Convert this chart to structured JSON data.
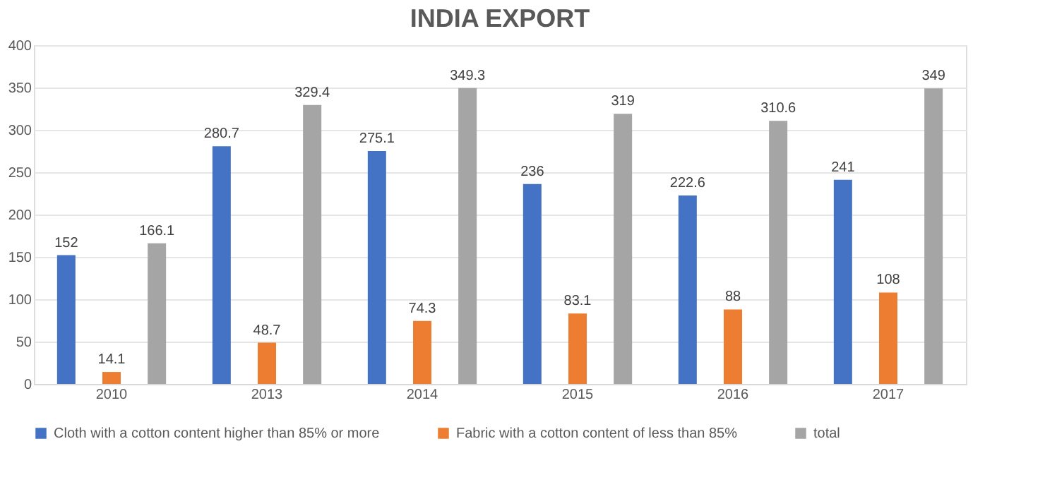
{
  "chart_data": {
    "type": "bar",
    "title": "INDIA EXPORT",
    "categories": [
      "2010",
      "2013",
      "2014",
      "2015",
      "2016",
      "2017"
    ],
    "series": [
      {
        "name": "Cloth with a cotton content higher than 85% or more",
        "color": "#4472c4",
        "values": [
          152,
          280.7,
          275.1,
          236,
          222.6,
          241
        ]
      },
      {
        "name": "Fabric with a cotton content of less than 85%",
        "color": "#ed7d31",
        "values": [
          14.1,
          48.7,
          74.3,
          83.1,
          88,
          108
        ]
      },
      {
        "name": "total",
        "color": "#a5a5a5",
        "values": [
          166.1,
          329.4,
          349.3,
          319,
          310.6,
          349
        ]
      }
    ],
    "ylim": [
      0,
      400
    ],
    "yticks": [
      0,
      50,
      100,
      150,
      200,
      250,
      300,
      350,
      400
    ],
    "grid": "y",
    "legend": "bottom",
    "data_labels": true
  }
}
